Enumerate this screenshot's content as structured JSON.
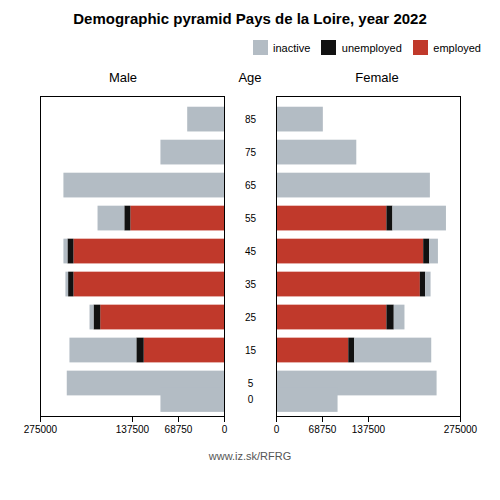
{
  "chart_data": {
    "type": "bar",
    "orientation": "horizontal",
    "stacked": true,
    "title": "Demographic pyramid Pays de la Loire, year 2022",
    "y_label": "Age",
    "caption": "www.iz.sk/RFRG",
    "y": [
      85,
      75,
      65,
      55,
      45,
      35,
      25,
      15,
      5,
      0
    ],
    "ylim": [
      -5,
      92
    ],
    "yticks": [
      85,
      75,
      65,
      55,
      45,
      35,
      25,
      15,
      5,
      0
    ],
    "xlim": [
      0,
      275000
    ],
    "xticks": [
      0,
      68750,
      137500,
      275000
    ],
    "grid": false,
    "legend": "upper right",
    "panels": [
      {
        "title": "Male",
        "series": [
          {
            "name": "inactive",
            "color": "#b3bcc4",
            "values": [
              55000,
              95000,
              240000,
              40000,
              6000,
              4000,
              6000,
              100000,
              235000,
              95000
            ]
          },
          {
            "name": "unemployed",
            "color": "#111111",
            "values": [
              0,
              0,
              0,
              9000,
              9000,
              8000,
              10000,
              11000,
              0,
              0
            ]
          },
          {
            "name": "employed",
            "color": "#c0392b",
            "values": [
              0,
              0,
              0,
              140000,
              225000,
              225000,
              185000,
              120000,
              0,
              0
            ]
          }
        ]
      },
      {
        "title": "Female",
        "series": [
          {
            "name": "inactive",
            "color": "#b3bcc4",
            "values": [
              70000,
              120000,
              230000,
              80000,
              13000,
              8000,
              16000,
              115000,
              240000,
              92000
            ]
          },
          {
            "name": "unemployed",
            "color": "#111111",
            "values": [
              0,
              0,
              0,
              9000,
              9000,
              8000,
              11000,
              9000,
              0,
              0
            ]
          },
          {
            "name": "employed",
            "color": "#c0392b",
            "values": [
              0,
              0,
              0,
              165000,
              220000,
              215000,
              165000,
              108000,
              0,
              0
            ]
          }
        ]
      }
    ]
  }
}
